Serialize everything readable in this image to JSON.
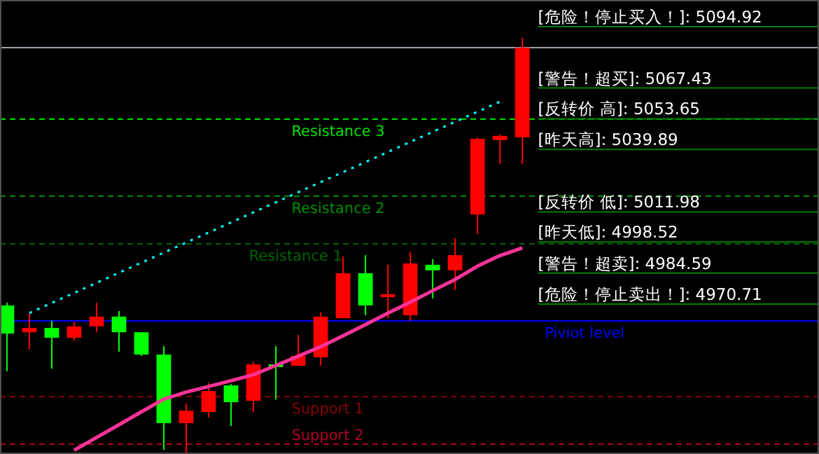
{
  "chart_data": {
    "type": "candlestick",
    "categories": [
      null,
      null,
      null,
      null,
      null,
      null,
      null,
      null,
      null,
      null,
      null,
      null,
      null,
      null,
      null,
      null,
      null,
      null,
      null,
      null,
      null,
      null,
      null,
      null
    ],
    "ohlc": [
      [
        4970.1,
        4971.3,
        4940.6,
        4957.5
      ],
      [
        4958.1,
        4966.4,
        4950.6,
        4960.0
      ],
      [
        4960.0,
        4963.2,
        4941.8,
        4955.6
      ],
      [
        4955.6,
        4962.5,
        4954.4,
        4960.7
      ],
      [
        4960.7,
        4971.3,
        4958.1,
        4965.1
      ],
      [
        4965.1,
        4967.6,
        4949.4,
        4958.1
      ],
      [
        4958.1,
        4958.1,
        4947.5,
        4948.1
      ],
      [
        4948.1,
        4951.9,
        4905.5,
        4917.4
      ],
      [
        4917.4,
        4926.2,
        4903.6,
        4923.0
      ],
      [
        4922.4,
        4935.5,
        4919.9,
        4931.8
      ],
      [
        4934.3,
        4934.9,
        4916.1,
        4926.8
      ],
      [
        4927.4,
        4945.0,
        4922.4,
        4943.7
      ],
      [
        4943.7,
        4951.9,
        4928.0,
        4942.5
      ],
      [
        4943.1,
        4956.9,
        4943.1,
        4947.5
      ],
      [
        4946.9,
        4967.0,
        4943.1,
        4965.1
      ],
      [
        4964.4,
        4992.0,
        4964.4,
        4984.5
      ],
      [
        4984.5,
        4992.6,
        4965.7,
        4970.1
      ],
      [
        4973.8,
        4988.3,
        4964.4,
        4975.1
      ],
      [
        4965.7,
        4993.9,
        4963.2,
        4988.9
      ],
      [
        4988.3,
        4990.8,
        4973.2,
        4985.8
      ],
      [
        4985.8,
        5000.2,
        4977.0,
        4992.6
      ],
      [
        5010.8,
        5045.3,
        5002.1,
        5044.7
      ],
      [
        5044.1,
        5046.6,
        5033.4,
        5046.0
      ],
      [
        5045.3,
        5089.9,
        5033.4,
        5085.5
      ]
    ],
    "colors": [
      "#00ff00",
      "#ff0000",
      "#00ff00",
      "#ff0000",
      "#ff0000",
      "#00ff00",
      "#00ff00",
      "#00ff00",
      "#ff0000",
      "#ff0000",
      "#00ff00",
      "#ff0000",
      "#00ff00",
      "#ff0000",
      "#ff0000",
      "#ff0000",
      "#00ff00",
      "#ff0000",
      "#ff0000",
      "#00ff00",
      "#ff0000",
      "#ff0000",
      "#ff0000",
      "#ff0000"
    ],
    "ylim": [
      4903.6,
      5106.8
    ],
    "tick_labels": false,
    "series": [
      {
        "type": "line",
        "color": "#ff3399",
        "line_style": "solid",
        "values": [
          null,
          null,
          null,
          4905.3,
          4911.0,
          4916.7,
          4922.5,
          4928.2,
          4931.3,
          4933.8,
          4936.4,
          4939.1,
          4943.2,
          4947.4,
          4951.6,
          4956.5,
          4961.5,
          4966.6,
          4971.6,
          4976.7,
          4981.7,
          4987.7,
          4992.4,
          4995.8
        ]
      },
      {
        "type": "line",
        "color": "#00ffff",
        "line_style": "dotted",
        "values": [
          null,
          4966.7,
          null,
          null,
          null,
          null,
          null,
          null,
          null,
          null,
          null,
          null,
          null,
          null,
          null,
          null,
          null,
          null,
          null,
          null,
          null,
          null,
          5061.3,
          null
        ]
      }
    ],
    "ref_lines": [
      {
        "axis": "y",
        "value": 5085.5,
        "label": null,
        "color": "#a0a0b0",
        "line_style": "solid"
      },
      {
        "axis": "y",
        "value": 5053.5,
        "label": "Resistance 3",
        "color": "#00e000",
        "line_style": "dashed"
      },
      {
        "axis": "y",
        "value": 5019.0,
        "label": "Resistance 2",
        "color": "#009000",
        "line_style": "dashed"
      },
      {
        "axis": "y",
        "value": 4997.7,
        "label": "Resistance 1",
        "color": "#006400",
        "line_style": "dashed"
      },
      {
        "axis": "y",
        "value": 4963.2,
        "label": "Piviot level",
        "color": "#0000ff",
        "line_style": "solid"
      },
      {
        "axis": "y",
        "value": 4929.3,
        "label": "Support 1",
        "color": "#8b0000",
        "line_style": "dashed"
      },
      {
        "axis": "y",
        "value": 4908.0,
        "label": "Support 2",
        "color": "#b00020",
        "line_style": "dashed"
      },
      {
        "axis": "y",
        "value": 5094.92,
        "label": "[危险！停止买入！]: 5094.92",
        "color": "#008000",
        "line_style": "solid"
      },
      {
        "axis": "y",
        "value": 5067.43,
        "label": "[警告！超买]: 5067.43",
        "color": "#008000",
        "line_style": "solid"
      },
      {
        "axis": "y",
        "value": 5053.65,
        "label": "[反转价 高]: 5053.65",
        "color": "#008000",
        "line_style": "solid"
      },
      {
        "axis": "y",
        "value": 5039.89,
        "label": "[昨天高]: 5039.89",
        "color": "#008000",
        "line_style": "solid"
      },
      {
        "axis": "y",
        "value": 5011.98,
        "label": "[反转价 低]: 5011.98",
        "color": "#008000",
        "line_style": "solid"
      },
      {
        "axis": "y",
        "value": 4998.52,
        "label": "[昨天低]: 4998.52",
        "color": "#008000",
        "line_style": "solid"
      },
      {
        "axis": "y",
        "value": 4984.59,
        "label": "[警告！超卖]: 4984.59",
        "color": "#008000",
        "line_style": "solid"
      },
      {
        "axis": "y",
        "value": 4970.71,
        "label": "[危险！停止卖出！]: 4970.71",
        "color": "#008000",
        "line_style": "solid"
      }
    ]
  }
}
